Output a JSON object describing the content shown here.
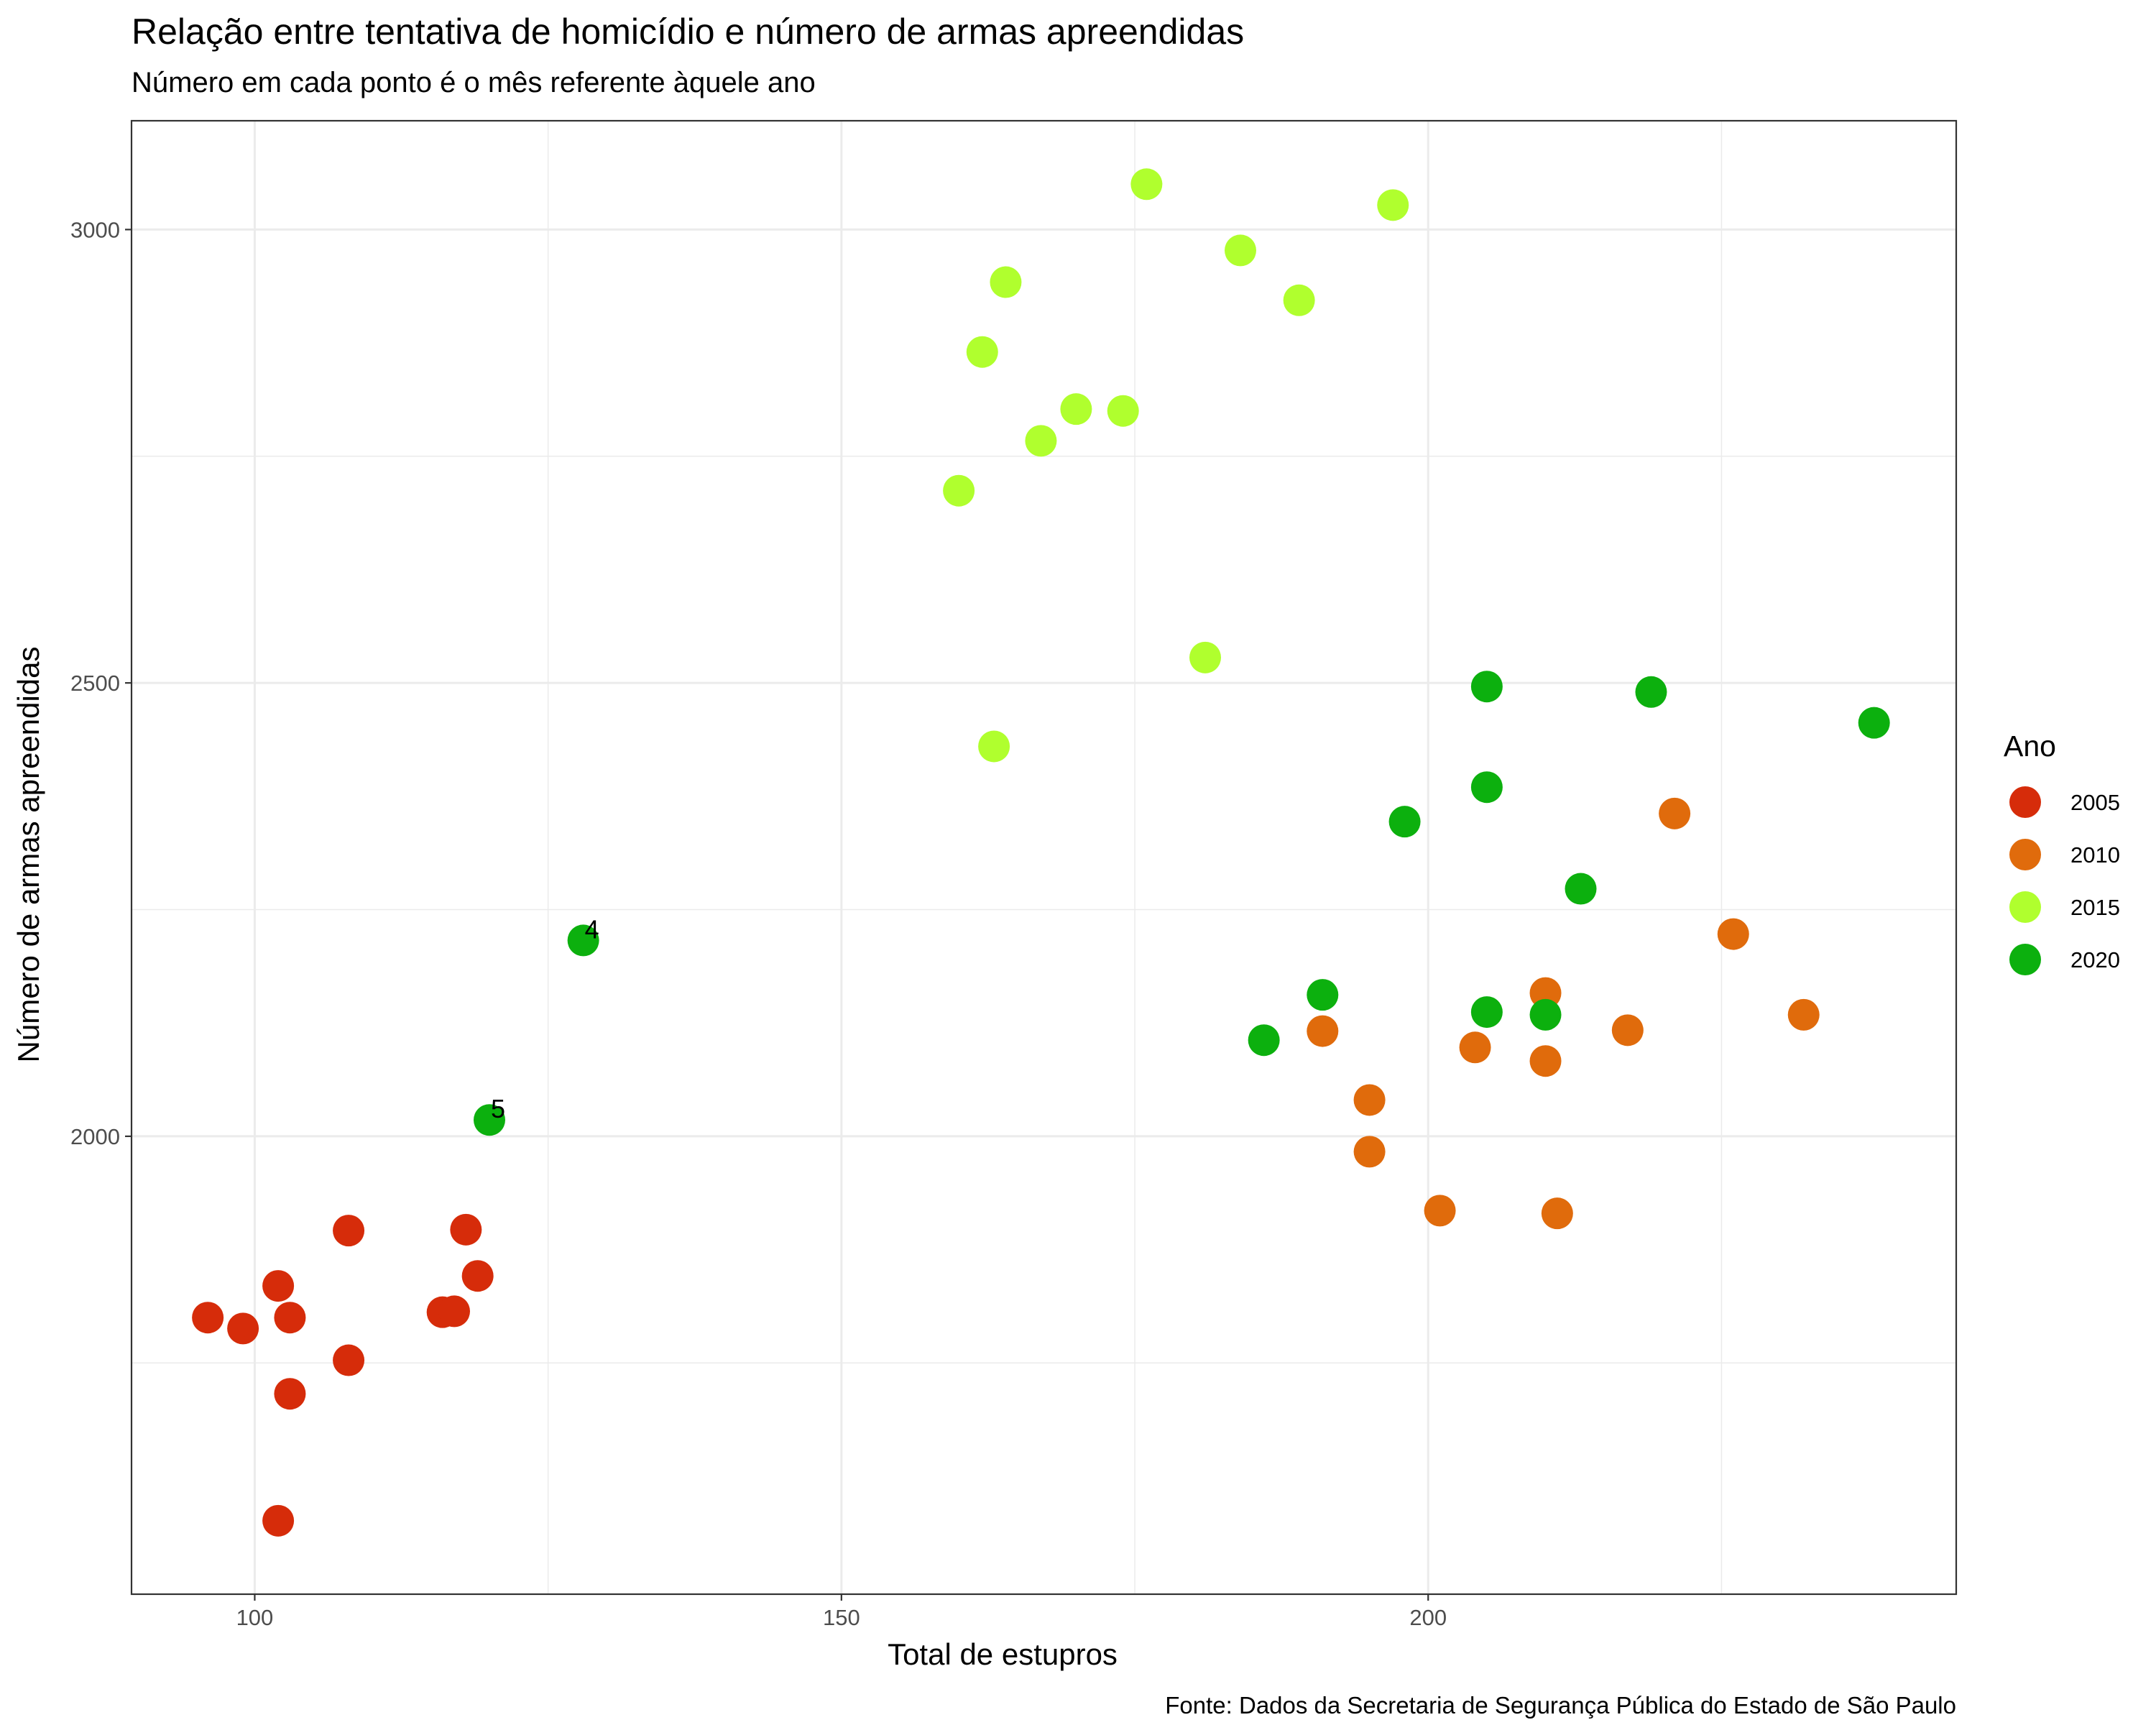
{
  "chart_data": {
    "type": "scatter",
    "title": "Relação entre tentativa de homicídio e número de armas apreendidas",
    "subtitle": "Número em cada ponto é o mês referente àquele ano",
    "xlabel": "Total de estupros",
    "ylabel": "Número de armas apreendidas",
    "caption": "Fonte: Dados da Secretaria de Segurança Pública do Estado de São Paulo",
    "xlim": [
      89.5,
      245
    ],
    "ylim": [
      1495,
      3120
    ],
    "x_ticks": [
      100,
      150,
      200
    ],
    "x_tick_labels": [
      "100",
      "150",
      "200"
    ],
    "x_minor": [
      125,
      175,
      225
    ],
    "y_ticks": [
      2000,
      2500,
      3000
    ],
    "y_tick_labels": [
      "2000",
      "2500",
      "3000"
    ],
    "y_minor": [
      1750,
      2250,
      2750
    ],
    "grid": true,
    "legend": {
      "title": "Ano",
      "position": "right"
    },
    "series": [
      {
        "name": "2005",
        "color": "#d62c0a",
        "points": [
          {
            "x": 96,
            "y": 1800
          },
          {
            "x": 99,
            "y": 1788
          },
          {
            "x": 102,
            "y": 1835
          },
          {
            "x": 103,
            "y": 1800
          },
          {
            "x": 103,
            "y": 1716
          },
          {
            "x": 102,
            "y": 1576
          },
          {
            "x": 108,
            "y": 1896
          },
          {
            "x": 108,
            "y": 1753
          },
          {
            "x": 116,
            "y": 1806
          },
          {
            "x": 117,
            "y": 1807
          },
          {
            "x": 118,
            "y": 1897
          },
          {
            "x": 119,
            "y": 1846
          }
        ]
      },
      {
        "name": "2010",
        "color": "#e06b0c",
        "points": [
          {
            "x": 191,
            "y": 2116
          },
          {
            "x": 195,
            "y": 2040
          },
          {
            "x": 195,
            "y": 1983
          },
          {
            "x": 201,
            "y": 1918
          },
          {
            "x": 204,
            "y": 2098
          },
          {
            "x": 210,
            "y": 2158
          },
          {
            "x": 210,
            "y": 2083
          },
          {
            "x": 211,
            "y": 1915
          },
          {
            "x": 217,
            "y": 2117
          },
          {
            "x": 221,
            "y": 2356
          },
          {
            "x": 226,
            "y": 2223
          },
          {
            "x": 232,
            "y": 2134
          }
        ]
      },
      {
        "name": "2015",
        "color": "#b0ff2e",
        "points": [
          {
            "x": 160,
            "y": 2712
          },
          {
            "x": 162,
            "y": 2865
          },
          {
            "x": 163,
            "y": 2430
          },
          {
            "x": 164,
            "y": 2942
          },
          {
            "x": 167,
            "y": 2767
          },
          {
            "x": 170,
            "y": 2802
          },
          {
            "x": 174,
            "y": 2800
          },
          {
            "x": 176,
            "y": 3050
          },
          {
            "x": 181,
            "y": 2528
          },
          {
            "x": 184,
            "y": 2977
          },
          {
            "x": 189,
            "y": 2922
          },
          {
            "x": 197,
            "y": 3027
          }
        ]
      },
      {
        "name": "2020",
        "color": "#0cb00e",
        "points": [
          {
            "x": 128,
            "y": 2216,
            "label": "4"
          },
          {
            "x": 120,
            "y": 2018,
            "label": "5"
          },
          {
            "x": 186,
            "y": 2106
          },
          {
            "x": 191,
            "y": 2156
          },
          {
            "x": 198,
            "y": 2347
          },
          {
            "x": 205,
            "y": 2496
          },
          {
            "x": 205,
            "y": 2385
          },
          {
            "x": 205,
            "y": 2137
          },
          {
            "x": 210,
            "y": 2134
          },
          {
            "x": 213,
            "y": 2273
          },
          {
            "x": 219,
            "y": 2490
          },
          {
            "x": 238,
            "y": 2456
          }
        ]
      }
    ]
  }
}
